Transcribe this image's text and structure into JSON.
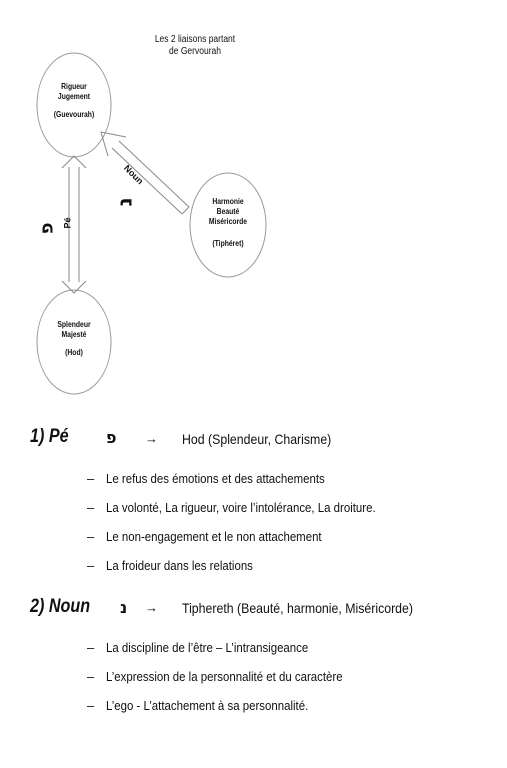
{
  "diagram": {
    "title_line1": "Les 2 liaisons partant",
    "title_line2": "de Gervourah",
    "nodes": {
      "guevourah": {
        "line1": "Rigueur",
        "line2": "Jugement",
        "line3": "(Guevourah)"
      },
      "tipheret": {
        "line1": "Harmonie",
        "line2": "Beauté",
        "line3": "Miséricorde",
        "line4": "(Tiphéret)"
      },
      "hod": {
        "line1": "Splendeur",
        "line2": "Majesté",
        "line3": "(Hod)"
      }
    },
    "link_pe": {
      "name": "Pé",
      "letter": "פ"
    },
    "link_noun": {
      "name": "Noun",
      "letter": "נ"
    }
  },
  "sections": [
    {
      "heading": "1) Pé",
      "letter": "פ",
      "arrow": "→",
      "description": "Hod (Splendeur, Charisme)",
      "dash": "–",
      "items": [
        "Le refus des émotions et des attachements",
        "La volonté, La rigueur, voire l’intolérance, La droiture.",
        "Le non-engagement et le non attachement",
        "La froideur dans les relations"
      ]
    },
    {
      "heading": "2) Noun",
      "letter": "נ",
      "arrow": "→",
      "description": "Tiphereth (Beauté, harmonie, Miséricorde)",
      "dash": "–",
      "items": [
        "La discipline de l’être – L’intransigeance",
        "L’expression de la personnalité et du caractère",
        "L’ego - L’attachement à sa personnalité."
      ]
    }
  ]
}
